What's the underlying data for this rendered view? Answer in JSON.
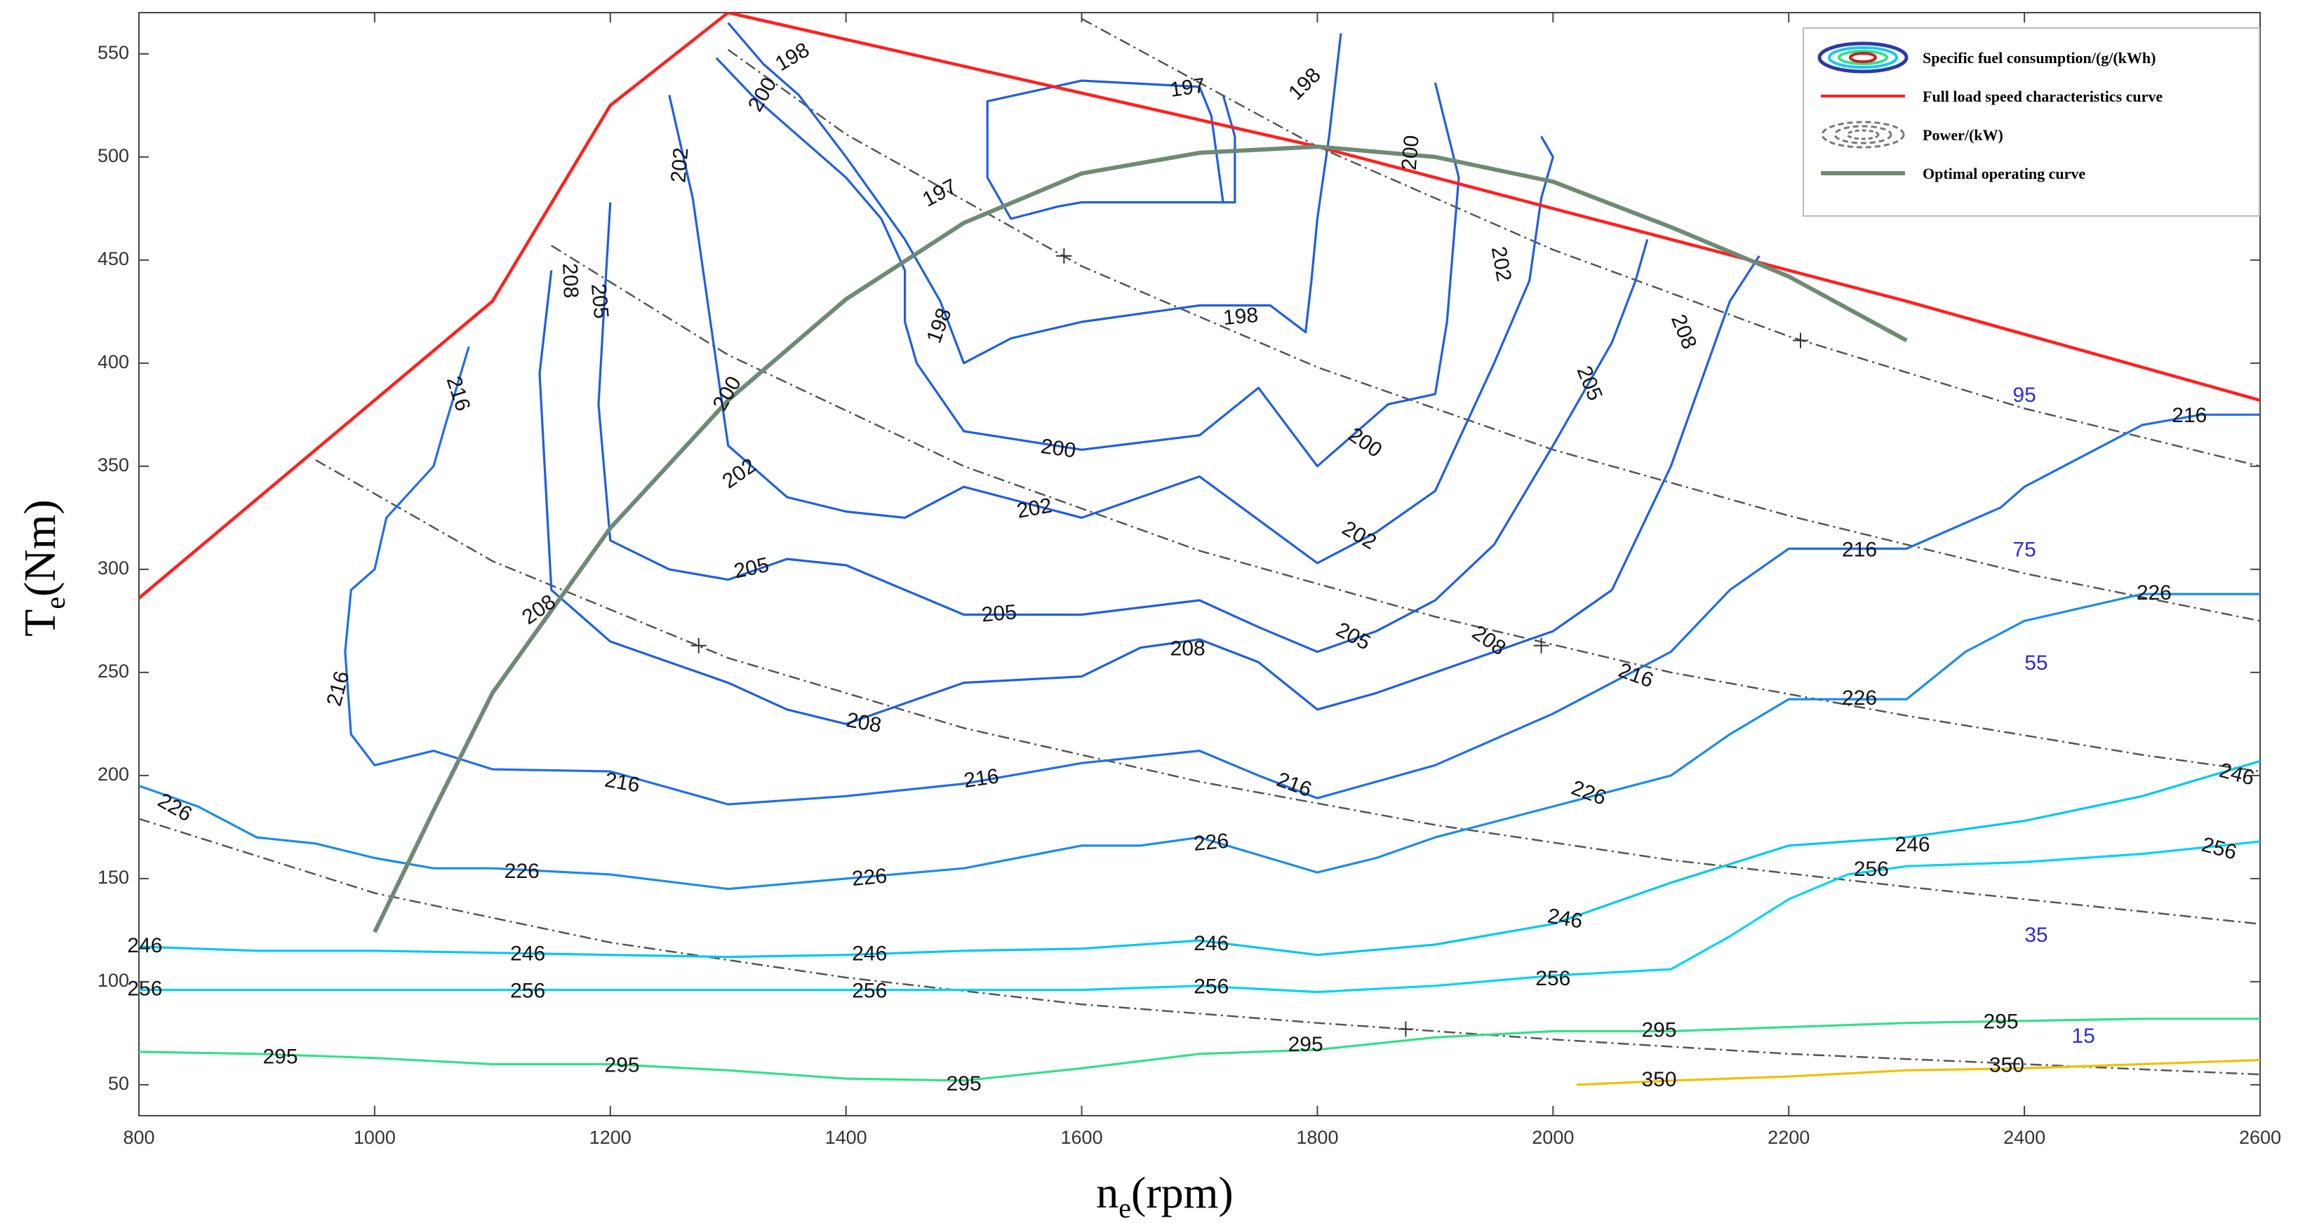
{
  "chart_data": {
    "type": "contour",
    "title": "",
    "xlabel": {
      "main": "n",
      "sub": "e",
      "unit": "(rpm)"
    },
    "ylabel": {
      "main": "T",
      "sub": "e",
      "unit": "(Nm)"
    },
    "xlim": [
      800,
      2600
    ],
    "ylim": [
      35,
      570
    ],
    "xticks": [
      800,
      1000,
      1200,
      1400,
      1600,
      1800,
      2000,
      2200,
      2400,
      2600
    ],
    "yticks": [
      50,
      100,
      150,
      200,
      250,
      300,
      350,
      400,
      450,
      500,
      550
    ],
    "grid": false,
    "legend_position": "top-right",
    "legend": [
      {
        "label": "Specific fuel consumption/(g/(kWh)",
        "style": "ellipses"
      },
      {
        "label": "Full load speed characteristics curve",
        "style": "line",
        "color": "#ff2020"
      },
      {
        "label": "Power/(kW)",
        "style": "dashed-ellipses",
        "color": "#666666"
      },
      {
        "label": "Optimal operating curve",
        "style": "line",
        "color": "#6e8a74"
      }
    ],
    "full_load_curve": {
      "color": "#ff2020",
      "x": [
        800,
        1100,
        1200,
        1300,
        1300,
        1800,
        2300,
        2600
      ],
      "y": [
        286,
        430,
        525,
        570,
        570,
        505,
        430,
        382
      ]
    },
    "optimal_curve": {
      "color": "#6e8a74",
      "x": [
        1000,
        1050,
        1100,
        1200,
        1300,
        1400,
        1500,
        1600,
        1700,
        1800,
        1900,
        2000,
        2100,
        2200,
        2300
      ],
      "y": [
        124,
        183,
        240,
        320,
        382,
        431,
        468,
        492,
        502,
        505,
        500,
        488,
        466,
        442,
        411
      ]
    },
    "power_curves": [
      {
        "value": 15,
        "label": "15",
        "label_at": [
          2450,
          73
        ],
        "x": [
          800,
          1000,
          1200,
          1400,
          1600,
          1800,
          2000,
          2200,
          2400,
          2600
        ],
        "y": [
          179,
          143,
          119,
          102,
          89,
          80,
          72,
          65,
          60,
          55
        ]
      },
      {
        "value": 35,
        "label": "35",
        "label_at": [
          2410,
          122
        ],
        "x": [
          950,
          1100,
          1300,
          1500,
          1700,
          1900,
          2100,
          2300,
          2500,
          2600
        ],
        "y": [
          353,
          304,
          257,
          223,
          197,
          176,
          159,
          146,
          134,
          128
        ]
      },
      {
        "value": 55,
        "label": "55",
        "label_at": [
          2410,
          254
        ],
        "x": [
          1150,
          1300,
          1500,
          1700,
          1900,
          2100,
          2300,
          2500,
          2600
        ],
        "y": [
          457,
          404,
          350,
          309,
          277,
          250,
          229,
          210,
          202
        ]
      },
      {
        "value": 75,
        "label": "75",
        "label_at": [
          2400,
          309
        ],
        "x": [
          1300,
          1400,
          1600,
          1800,
          2000,
          2200,
          2400,
          2600
        ],
        "y": [
          552,
          511,
          447,
          398,
          358,
          326,
          298,
          275
        ]
      },
      {
        "value": 95,
        "label": "95",
        "label_at": [
          2400,
          384
        ],
        "x": [
          1600,
          1800,
          2000,
          2200,
          2400,
          2600
        ],
        "y": [
          567,
          505,
          455,
          413,
          378,
          350
        ]
      }
    ],
    "power_markers": [
      [
        1275,
        263
      ],
      [
        1585,
        452
      ],
      [
        1875,
        77
      ],
      [
        1990,
        263
      ],
      [
        2210,
        411
      ]
    ],
    "contours": [
      {
        "level": 197,
        "color": "#1f5fe0",
        "x": [
          1720,
          1710,
          1700,
          1600,
          1520,
          1520,
          1540,
          1580,
          1600,
          1670,
          1730,
          1730,
          1720
        ],
        "y": [
          478,
          520,
          534,
          537,
          527,
          490,
          470,
          476,
          478,
          478,
          478,
          510,
          530
        ]
      },
      {
        "level": 198,
        "color": "#1f5fe0",
        "x": [
          1300,
          1330,
          1360,
          1400,
          1450,
          1480,
          1490,
          1500,
          1540,
          1600,
          1700,
          1760,
          1790,
          1795,
          1800,
          1810,
          1820
        ],
        "y": [
          565,
          545,
          530,
          500,
          460,
          430,
          415,
          400,
          412,
          420,
          428,
          428,
          415,
          440,
          470,
          510,
          560
        ]
      },
      {
        "level": 200,
        "color": "#1f5fe0",
        "x": [
          1290,
          1320,
          1360,
          1400,
          1430,
          1450,
          1450,
          1460,
          1500,
          1600,
          1700,
          1750,
          1800,
          1860,
          1900,
          1910,
          1920,
          1900
        ],
        "y": [
          548,
          530,
          510,
          490,
          470,
          445,
          420,
          400,
          367,
          358,
          365,
          388,
          350,
          380,
          385,
          420,
          490,
          536
        ]
      },
      {
        "level": 202,
        "color": "#1f5fe0",
        "x": [
          1250,
          1270,
          1280,
          1290,
          1300,
          1350,
          1400,
          1450,
          1500,
          1600,
          1700,
          1800,
          1850,
          1900,
          1950,
          1980,
          1990,
          2000,
          1990
        ],
        "y": [
          530,
          480,
          440,
          400,
          360,
          335,
          328,
          325,
          340,
          325,
          345,
          303,
          318,
          338,
          400,
          440,
          480,
          500,
          510
        ]
      },
      {
        "level": 205,
        "color": "#1f5fe0",
        "x": [
          1200,
          1195,
          1190,
          1200,
          1250,
          1300,
          1350,
          1400,
          1500,
          1600,
          1700,
          1750,
          1800,
          1850,
          1900,
          1950,
          2000,
          2050,
          2070,
          2080
        ],
        "y": [
          478,
          430,
          380,
          314,
          300,
          295,
          305,
          302,
          278,
          278,
          285,
          272,
          260,
          270,
          285,
          312,
          360,
          410,
          440,
          460
        ]
      },
      {
        "level": 208,
        "color": "#1f5fe0",
        "x": [
          1150,
          1140,
          1150,
          1200,
          1250,
          1300,
          1350,
          1400,
          1450,
          1500,
          1600,
          1650,
          1700,
          1750,
          1800,
          1850,
          1900,
          2000,
          2050,
          2100,
          2150,
          2175
        ],
        "y": [
          445,
          395,
          290,
          265,
          255,
          245,
          232,
          225,
          235,
          245,
          248,
          262,
          266,
          255,
          232,
          240,
          250,
          270,
          290,
          350,
          430,
          452
        ]
      },
      {
        "level": 216,
        "color": "#1f6ee8",
        "x": [
          1080,
          1060,
          1050,
          1010,
          1000,
          980,
          975,
          980,
          1000,
          1050,
          1100,
          1200,
          1300,
          1400,
          1500,
          1600,
          1700,
          1750,
          1800,
          1900,
          2000,
          2100,
          2150,
          2200,
          2300,
          2380,
          2400,
          2500,
          2550,
          2600
        ],
        "y": [
          408,
          370,
          350,
          325,
          300,
          290,
          260,
          220,
          205,
          212,
          203,
          202,
          186,
          190,
          196,
          206,
          212,
          200,
          189,
          205,
          230,
          260,
          290,
          310,
          310,
          330,
          340,
          370,
          375,
          375
        ]
      },
      {
        "level": 226,
        "color": "#1a8ce8",
        "x": [
          800,
          850,
          900,
          950,
          1000,
          1050,
          1100,
          1200,
          1300,
          1400,
          1500,
          1600,
          1650,
          1700,
          1800,
          1850,
          1900,
          2000,
          2100,
          2150,
          2200,
          2300,
          2350,
          2400,
          2500,
          2600
        ],
        "y": [
          195,
          185,
          170,
          167,
          160,
          155,
          155,
          152,
          145,
          150,
          155,
          166,
          166,
          170,
          153,
          160,
          170,
          185,
          200,
          220,
          237,
          237,
          260,
          275,
          288,
          288
        ]
      },
      {
        "level": 246,
        "color": "#00c8f0",
        "x": [
          800,
          900,
          1000,
          1100,
          1200,
          1300,
          1400,
          1500,
          1600,
          1700,
          1800,
          1900,
          2000,
          2100,
          2200,
          2300,
          2400,
          2500,
          2600
        ],
        "y": [
          117,
          115,
          115,
          114,
          113,
          112,
          113,
          115,
          116,
          120,
          113,
          118,
          128,
          148,
          166,
          170,
          178,
          190,
          207
        ]
      },
      {
        "level": 256,
        "color": "#00d4f2",
        "x": [
          800,
          900,
          1000,
          1100,
          1200,
          1300,
          1400,
          1500,
          1600,
          1700,
          1800,
          1900,
          2000,
          2100,
          2150,
          2200,
          2250,
          2300,
          2400,
          2500,
          2600
        ],
        "y": [
          96,
          96,
          96,
          96,
          96,
          96,
          96,
          96,
          96,
          98,
          95,
          98,
          103,
          106,
          122,
          140,
          152,
          156,
          158,
          162,
          168
        ]
      },
      {
        "level": 295,
        "color": "#33e08a",
        "x": [
          800,
          900,
          1000,
          1100,
          1200,
          1300,
          1400,
          1500,
          1600,
          1700,
          1800,
          1900,
          2000,
          2100,
          2200,
          2300,
          2400,
          2500,
          2600
        ],
        "y": [
          66,
          65,
          63,
          60,
          60,
          57,
          53,
          52,
          58,
          65,
          67,
          73,
          76,
          76,
          78,
          80,
          81,
          82,
          82
        ]
      },
      {
        "level": 350,
        "color": "#f0c000",
        "x": [
          2020,
          2100,
          2200,
          2300,
          2400,
          2500,
          2600
        ],
        "y": [
          50,
          52,
          54,
          57,
          58,
          60,
          62
        ]
      }
    ],
    "contour_labels": [
      {
        "text": "197",
        "x": 1690,
        "y": 533,
        "angle": 8
      },
      {
        "text": "197",
        "x": 1480,
        "y": 482,
        "angle": 28
      },
      {
        "text": "198",
        "x": 1355,
        "y": 548,
        "angle": 30
      },
      {
        "text": "198",
        "x": 1480,
        "y": 418,
        "angle": 70
      },
      {
        "text": "198",
        "x": 1735,
        "y": 422,
        "angle": 5
      },
      {
        "text": "198",
        "x": 1790,
        "y": 535,
        "angle": 45
      },
      {
        "text": "200",
        "x": 1330,
        "y": 530,
        "angle": 60
      },
      {
        "text": "200",
        "x": 1300,
        "y": 385,
        "angle": 60
      },
      {
        "text": "200",
        "x": 1580,
        "y": 358,
        "angle": -8
      },
      {
        "text": "200",
        "x": 1840,
        "y": 361,
        "angle": -35
      },
      {
        "text": "200",
        "x": 1880,
        "y": 502,
        "angle": 85
      },
      {
        "text": "202",
        "x": 1260,
        "y": 496,
        "angle": 85
      },
      {
        "text": "202",
        "x": 1310,
        "y": 346,
        "angle": 35
      },
      {
        "text": "202",
        "x": 1560,
        "y": 329,
        "angle": 10
      },
      {
        "text": "202",
        "x": 1835,
        "y": 316,
        "angle": -30
      },
      {
        "text": "202",
        "x": 1955,
        "y": 448,
        "angle": -80
      },
      {
        "text": "205",
        "x": 1190,
        "y": 430,
        "angle": -85
      },
      {
        "text": "205",
        "x": 1320,
        "y": 300,
        "angle": 12
      },
      {
        "text": "205",
        "x": 1530,
        "y": 278,
        "angle": 5
      },
      {
        "text": "205",
        "x": 1830,
        "y": 267,
        "angle": -28
      },
      {
        "text": "205",
        "x": 2030,
        "y": 390,
        "angle": -68
      },
      {
        "text": "208",
        "x": 1165,
        "y": 440,
        "angle": -88
      },
      {
        "text": "208",
        "x": 1140,
        "y": 280,
        "angle": 35
      },
      {
        "text": "208",
        "x": 1415,
        "y": 225,
        "angle": -10
      },
      {
        "text": "208",
        "x": 1690,
        "y": 261,
        "angle": 0
      },
      {
        "text": "208",
        "x": 1945,
        "y": 265,
        "angle": -35
      },
      {
        "text": "208",
        "x": 2110,
        "y": 415,
        "angle": -68
      },
      {
        "text": "216",
        "x": 1070,
        "y": 385,
        "angle": -72
      },
      {
        "text": "216",
        "x": 970,
        "y": 242,
        "angle": 75
      },
      {
        "text": "216",
        "x": 1210,
        "y": 196,
        "angle": -10
      },
      {
        "text": "216",
        "x": 1515,
        "y": 198,
        "angle": 8
      },
      {
        "text": "216",
        "x": 1780,
        "y": 195,
        "angle": -20
      },
      {
        "text": "216",
        "x": 2070,
        "y": 248,
        "angle": -20
      },
      {
        "text": "216",
        "x": 2260,
        "y": 309,
        "angle": 0
      },
      {
        "text": "216",
        "x": 2540,
        "y": 374,
        "angle": 0
      },
      {
        "text": "226",
        "x": 830,
        "y": 184,
        "angle": -30
      },
      {
        "text": "226",
        "x": 1125,
        "y": 153,
        "angle": 0
      },
      {
        "text": "226",
        "x": 1420,
        "y": 150,
        "angle": 5
      },
      {
        "text": "226",
        "x": 1710,
        "y": 167,
        "angle": 5
      },
      {
        "text": "226",
        "x": 2030,
        "y": 191,
        "angle": -20
      },
      {
        "text": "226",
        "x": 2260,
        "y": 237,
        "angle": 0
      },
      {
        "text": "226",
        "x": 2510,
        "y": 288,
        "angle": 0
      },
      {
        "text": "246",
        "x": 805,
        "y": 117,
        "angle": 0
      },
      {
        "text": "246",
        "x": 1130,
        "y": 113,
        "angle": 0
      },
      {
        "text": "246",
        "x": 1420,
        "y": 113,
        "angle": 0
      },
      {
        "text": "246",
        "x": 1710,
        "y": 118,
        "angle": 0
      },
      {
        "text": "246",
        "x": 2010,
        "y": 130,
        "angle": -10
      },
      {
        "text": "246",
        "x": 2305,
        "y": 166,
        "angle": 0
      },
      {
        "text": "246",
        "x": 2580,
        "y": 200,
        "angle": -15
      },
      {
        "text": "256",
        "x": 805,
        "y": 96,
        "angle": 0
      },
      {
        "text": "256",
        "x": 1130,
        "y": 95,
        "angle": 0
      },
      {
        "text": "256",
        "x": 1420,
        "y": 95,
        "angle": 0
      },
      {
        "text": "256",
        "x": 1710,
        "y": 97,
        "angle": 0
      },
      {
        "text": "256",
        "x": 2000,
        "y": 101,
        "angle": 0
      },
      {
        "text": "256",
        "x": 2270,
        "y": 154,
        "angle": 0
      },
      {
        "text": "256",
        "x": 2565,
        "y": 164,
        "angle": -15
      },
      {
        "text": "295",
        "x": 920,
        "y": 63,
        "angle": 0
      },
      {
        "text": "295",
        "x": 1210,
        "y": 59,
        "angle": 0
      },
      {
        "text": "295",
        "x": 1500,
        "y": 50,
        "angle": 0
      },
      {
        "text": "295",
        "x": 1790,
        "y": 69,
        "angle": 0
      },
      {
        "text": "295",
        "x": 2090,
        "y": 76,
        "angle": 0
      },
      {
        "text": "295",
        "x": 2380,
        "y": 80,
        "angle": 0
      },
      {
        "text": "350",
        "x": 2090,
        "y": 52,
        "angle": 0
      },
      {
        "text": "350",
        "x": 2385,
        "y": 59,
        "angle": 0
      }
    ]
  }
}
